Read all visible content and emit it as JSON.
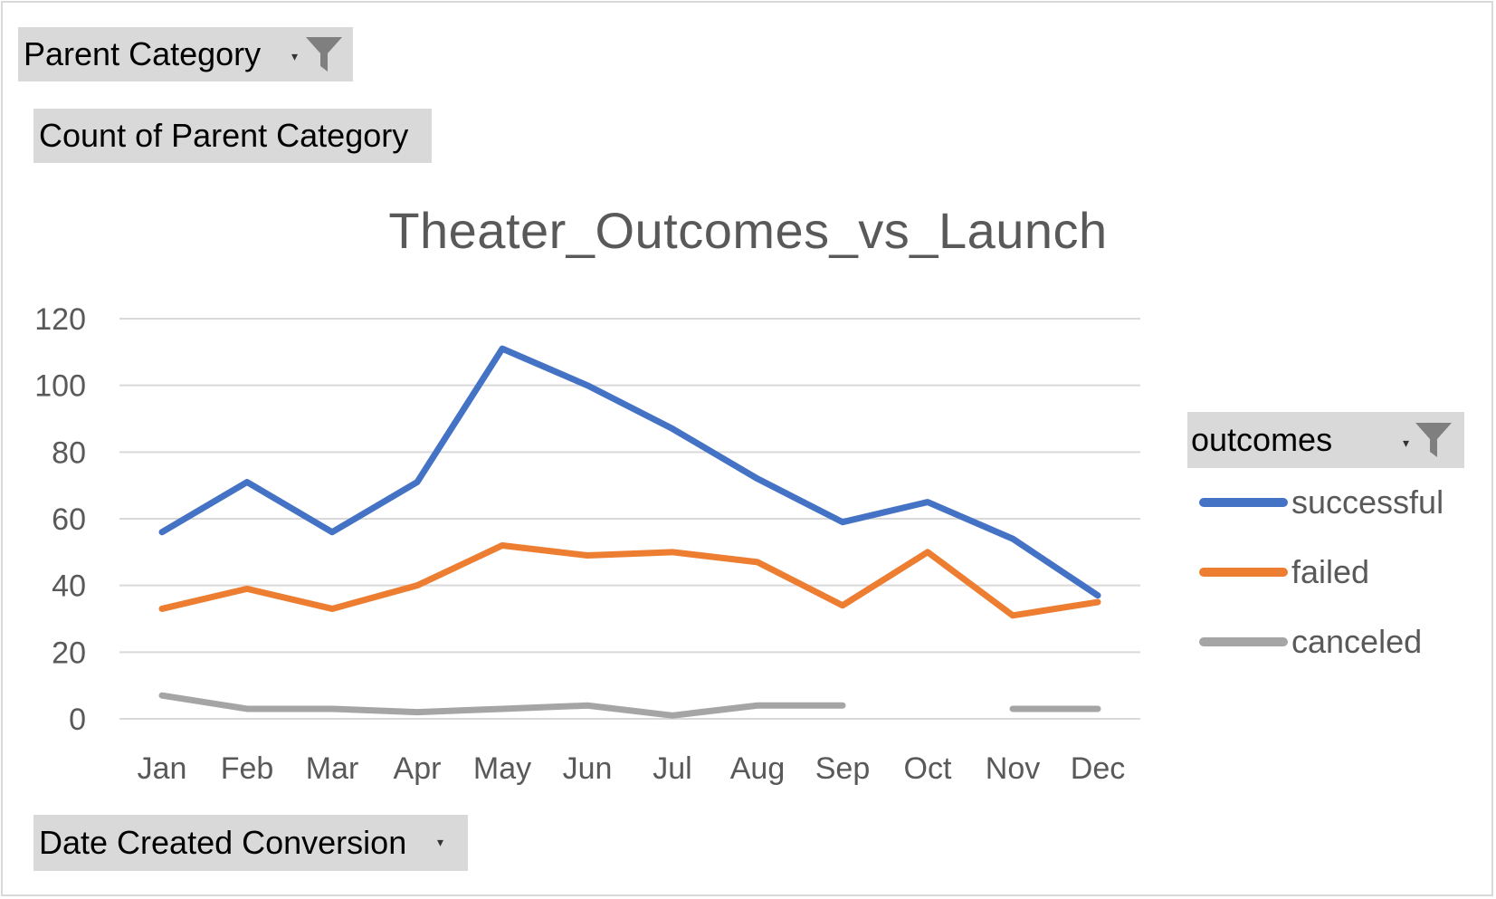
{
  "filters": {
    "parent_category": "Parent Category",
    "count_field": "Count of Parent Category",
    "axis_field": "Date Created Conversion",
    "legend_field": "outcomes"
  },
  "icons": {
    "filter": "funnel-icon",
    "dropdown": "dropdown-arrow-icon"
  },
  "chart_data": {
    "type": "line",
    "title": "Theater_Outcomes_vs_Launch",
    "xlabel": "",
    "ylabel": "",
    "categories": [
      "Jan",
      "Feb",
      "Mar",
      "Apr",
      "May",
      "Jun",
      "Jul",
      "Aug",
      "Sep",
      "Oct",
      "Nov",
      "Dec"
    ],
    "ylim": [
      0,
      120
    ],
    "yticks": [
      0,
      20,
      40,
      60,
      80,
      100,
      120
    ],
    "grid": true,
    "legend_position": "right",
    "series": [
      {
        "name": "successful",
        "color": "#4472C4",
        "values": [
          56,
          71,
          56,
          71,
          111,
          100,
          87,
          72,
          59,
          65,
          54,
          37
        ]
      },
      {
        "name": "failed",
        "color": "#ED7D31",
        "values": [
          33,
          39,
          33,
          40,
          52,
          49,
          50,
          47,
          34,
          50,
          31,
          35
        ]
      },
      {
        "name": "canceled",
        "color": "#A5A5A5",
        "values": [
          7,
          3,
          3,
          2,
          3,
          4,
          1,
          4,
          4,
          null,
          3,
          3
        ]
      }
    ]
  }
}
